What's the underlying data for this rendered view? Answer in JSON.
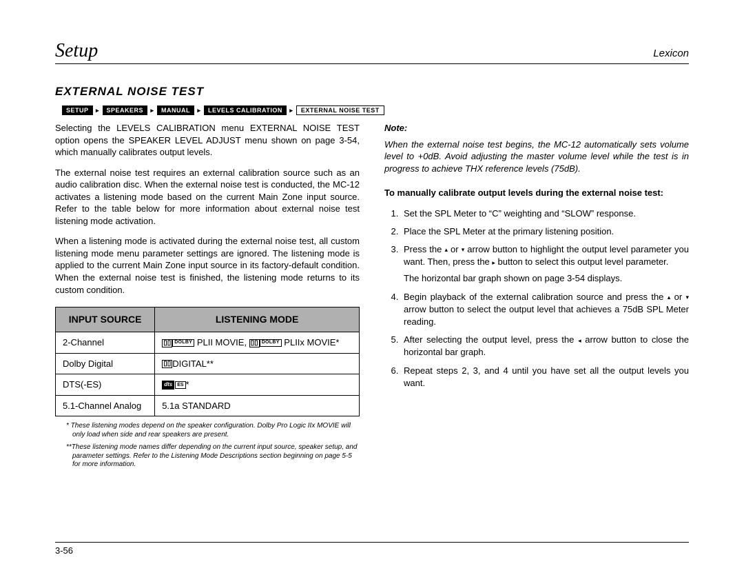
{
  "header": {
    "title": "Setup",
    "brand": "Lexicon"
  },
  "section_title": "EXTERNAL NOISE TEST",
  "breadcrumb": [
    "SETUP",
    "SPEAKERS",
    "MANUAL",
    "LEVELS CALIBRATION",
    "EXTERNAL NOISE TEST"
  ],
  "left": {
    "p1": "Selecting the LEVELS CALIBRATION menu EXTERNAL NOISE TEST option opens the SPEAKER LEVEL ADJUST menu shown on page 3-54, which manually calibrates output levels.",
    "p2": "The external noise test requires an external calibration source such as an audio calibration disc. When the external noise test is conducted, the MC-12 activates a listening mode based on the current Main Zone input source. Refer to the table below for more information about external noise test listening mode activation.",
    "p3": "When a listening mode is activated during the external noise test, all custom listening mode menu parameter settings are ignored. The listening mode is applied to the current Main Zone input source in its factory-default condition. When the external noise test is finished, the listening mode returns to its custom condition."
  },
  "table": {
    "headers": [
      "INPUT SOURCE",
      "LISTENING MODE"
    ],
    "rows": [
      {
        "source": "2-Channel",
        "mode_pre1": "DOLBY",
        "mode_mid": " PLII MOVIE, ",
        "mode_pre2": "DOLBY",
        "mode_end": " PLIIx MOVIE*"
      },
      {
        "source": "Dolby Digital",
        "mode_end": "DIGITAL**"
      },
      {
        "source": "DTS(-ES)",
        "mode_end": "*"
      },
      {
        "source": "5.1-Channel Analog",
        "mode_plain": "5.1a STANDARD"
      }
    ]
  },
  "footnotes": {
    "f1": "*  These listening modes depend on the speaker configuration. Dolby Pro Logic IIx MOVIE will only load when side and rear speakers are present.",
    "f2": "**These listening mode names differ depending on the current input source, speaker setup, and parameter settings. Refer to the Listening Mode Descriptions section beginning on page 5-5 for more information."
  },
  "right": {
    "note_label": "Note:",
    "note_body": "When the external noise test begins, the MC-12 automatically sets volume level to +0dB. Avoid adjusting the master volume level while the test is in progress to achieve THX reference levels (75dB).",
    "instr_heading": "To manually calibrate output levels during the external noise test:",
    "steps": {
      "s1": "Set the SPL Meter to “C” weighting and “SLOW” response.",
      "s2": "Place the SPL Meter at the primary listening position.",
      "s3a": "Press the ",
      "s3b": " or ",
      "s3c": " arrow button to highlight the output level parameter you want. Then, press the ",
      "s3d": " button to select this output level parameter.",
      "s3_sub": "The horizontal bar graph shown on page 3-54 displays.",
      "s4a": "Begin playback of the external calibration source and press the ",
      "s4b": " or ",
      "s4c": " arrow button to select the output level that achieves a 75dB SPL Meter reading.",
      "s5a": "After selecting the output level, press the ",
      "s5b": " arrow button to close the horizontal bar graph.",
      "s6": "Repeat steps 2, 3, and 4 until you have set all the output levels you want."
    }
  },
  "page_number": "3-56",
  "glyphs": {
    "up": "▴",
    "down": "▾",
    "right": "▸",
    "left": "◂",
    "dd": "▯▯"
  }
}
